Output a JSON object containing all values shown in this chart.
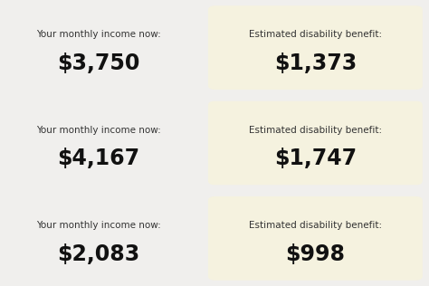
{
  "bg_color": "#f0efed",
  "box_color": "#f5f2df",
  "rows": [
    {
      "left_label": "Your monthly income now:",
      "left_value": "$3,750",
      "right_label": "Estimated disability benefit:",
      "right_value": "$1,373"
    },
    {
      "left_label": "Your monthly income now:",
      "left_value": "$4,167",
      "right_label": "Estimated disability benefit:",
      "right_value": "$1,747"
    },
    {
      "left_label": "Your monthly income now:",
      "left_value": "$2,083",
      "right_label": "Estimated disability benefit:",
      "right_value": "$998"
    }
  ],
  "label_fontsize": 7.5,
  "value_fontsize": 17,
  "label_color": "#333333",
  "value_color": "#111111",
  "fig_width": 4.74,
  "fig_height": 3.16,
  "dpi": 100
}
